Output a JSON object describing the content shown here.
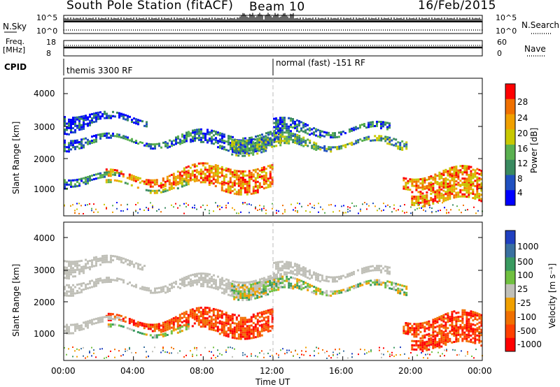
{
  "header": {
    "station": "South Pole Station (fitACF)",
    "beam": "Beam 10",
    "date": "16/Feb/2015"
  },
  "panels": {
    "nsky_label": "N.Sky",
    "nsky_ticks": [
      "10^5",
      "10^0"
    ],
    "nsearch_label": "N.Search",
    "freq_label": [
      "Freq.",
      "[MHz]"
    ],
    "freq_ticks": [
      "18",
      "8"
    ],
    "nave_label": "Nave",
    "nave_ticks": [
      "60",
      "0"
    ],
    "cpid_label": "CPID",
    "cpid_modes": [
      "themis 3300 RF",
      "normal (fast) -151 RF"
    ]
  },
  "chart_data": [
    {
      "type": "heatmap",
      "name": "power",
      "ylabel": "Slant Range [km]",
      "yticks": [
        "1000",
        "2000",
        "3000",
        "4000"
      ],
      "colorbar_label": "Power [dB]",
      "colorbar_ticks": [
        "4",
        "8",
        "12",
        "16",
        "20",
        "24",
        "28"
      ],
      "colorbar_colors": [
        "#0000ff",
        "#2050c0",
        "#3a8a60",
        "#5ab050",
        "#c8c800",
        "#f0a000",
        "#f07000",
        "#ff0000"
      ]
    },
    {
      "type": "heatmap",
      "name": "velocity",
      "ylabel": "Slant Range [km]",
      "yticks": [
        "1000",
        "2000",
        "3000",
        "4000"
      ],
      "colorbar_label": "Velocity [m s⁻¹]",
      "colorbar_ticks": [
        "1000",
        "500",
        "100",
        "25",
        "-25",
        "-100",
        "-500",
        "-1000"
      ],
      "colorbar_colors": [
        "#2040c0",
        "#3a70a0",
        "#3a9a60",
        "#70c040",
        "#c0c0b8",
        "#f0a000",
        "#f07000",
        "#ff4000",
        "#ff0000"
      ],
      "xlabel": "Time UT",
      "xticks": [
        "00:00",
        "04:00",
        "08:00",
        "12:00",
        "16:00",
        "20:00",
        "00:00"
      ]
    }
  ]
}
